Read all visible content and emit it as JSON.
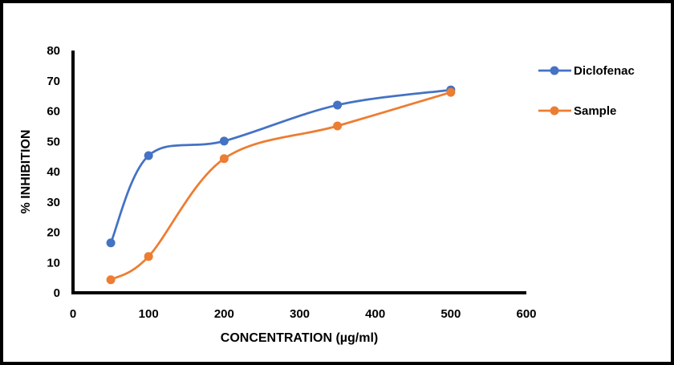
{
  "chart_data": {
    "type": "line",
    "title": "",
    "xlabel": "CONCENTRATION (µg/ml)",
    "ylabel": "% INHIBITION",
    "xlim": [
      0,
      600
    ],
    "ylim": [
      0,
      80
    ],
    "xticks": [
      "0",
      "100",
      "200",
      "300",
      "400",
      "500",
      "600"
    ],
    "yticks": [
      "0",
      "10",
      "20",
      "30",
      "40",
      "50",
      "60",
      "70",
      "80"
    ],
    "grid": false,
    "smooth": true,
    "legend_position": "right",
    "x": [
      50,
      100,
      200,
      350,
      500
    ],
    "series": [
      {
        "name": "Diclofenac",
        "color": "#4472C4",
        "values": [
          16.5,
          45.3,
          50.1,
          62.0,
          67.0
        ]
      },
      {
        "name": "Sample",
        "color": "#ED7D31",
        "values": [
          4.3,
          12.0,
          44.3,
          55.1,
          66.2
        ]
      }
    ]
  }
}
